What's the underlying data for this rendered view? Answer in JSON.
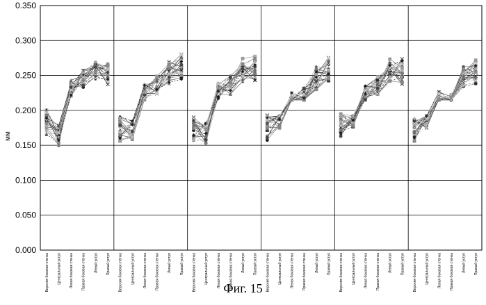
{
  "caption": "Фиг. 15",
  "chart_data": {
    "type": "line",
    "ylabel": "мм",
    "ylim": [
      0,
      0.35
    ],
    "yticks": [
      "0.000",
      "0.050",
      "0.100",
      "0.150",
      "0.200",
      "0.250",
      "0.300",
      "0.350"
    ],
    "grid": "horizontal and vertical",
    "panels": 6,
    "categories": [
      "Верхняя боковая стенка",
      "Центральный уступ",
      "Левая боковая стенка",
      "Правая боковая стенка",
      "Левый уступ",
      "Правый уступ"
    ],
    "envelope": {
      "min": [
        0.14,
        0.135,
        0.215,
        0.215,
        0.22,
        0.215
      ],
      "mean": [
        0.18,
        0.168,
        0.232,
        0.243,
        0.254,
        0.25
      ],
      "max": [
        0.21,
        0.192,
        0.258,
        0.262,
        0.28,
        0.282
      ]
    },
    "panel_means": [
      [
        0.182,
        0.165,
        0.232,
        0.244,
        0.256,
        0.252
      ],
      [
        0.175,
        0.17,
        0.226,
        0.236,
        0.254,
        0.262
      ],
      [
        0.172,
        0.168,
        0.228,
        0.236,
        0.258,
        0.26
      ],
      [
        0.176,
        0.19,
        0.214,
        0.22,
        0.246,
        0.26
      ],
      [
        0.18,
        0.188,
        0.224,
        0.236,
        0.258,
        0.256
      ],
      [
        0.172,
        0.19,
        0.215,
        0.212,
        0.248,
        0.255
      ]
    ],
    "series_count": 24
  }
}
